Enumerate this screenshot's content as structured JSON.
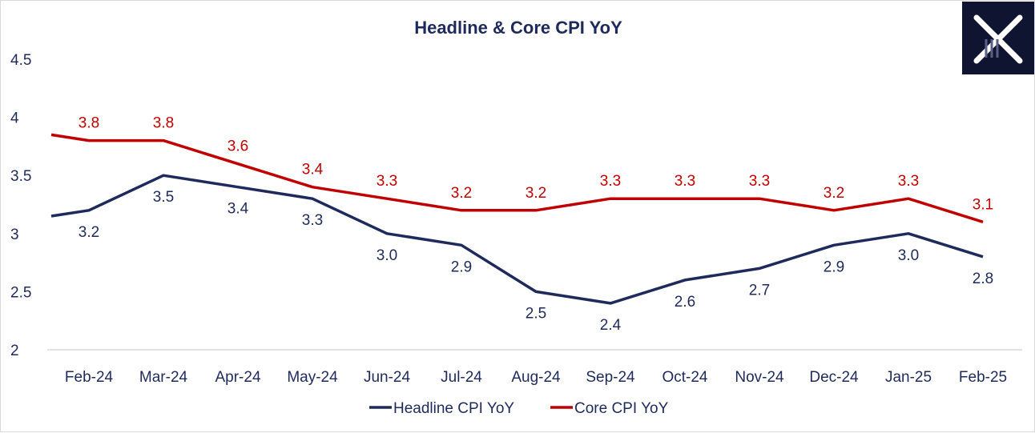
{
  "chart_data": {
    "type": "line",
    "title": "Headline & Core CPI YoY",
    "categories": [
      "Feb-24",
      "Mar-24",
      "Apr-24",
      "May-24",
      "Jun-24",
      "Jul-24",
      "Aug-24",
      "Sep-24",
      "Oct-24",
      "Nov-24",
      "Dec-24",
      "Jan-25",
      "Feb-25"
    ],
    "ylim": [
      2,
      4.5
    ],
    "yticks": [
      "2",
      "2.5",
      "3",
      "3.5",
      "4",
      "4.5"
    ],
    "grid": false,
    "legend": "bottom",
    "series": [
      {
        "name": "Headline CPI YoY",
        "color": "#1f2a5c",
        "start_value": 3.15,
        "values": [
          3.2,
          3.5,
          3.4,
          3.3,
          3.0,
          2.9,
          2.5,
          2.4,
          2.6,
          2.7,
          2.9,
          3.0,
          2.8
        ],
        "labels": [
          "3.2",
          "3.5",
          "3.4",
          "3.3",
          "3.0",
          "2.9",
          "2.5",
          "2.4",
          "2.6",
          "2.7",
          "2.9",
          "3.0",
          "2.8"
        ]
      },
      {
        "name": "Core CPI YoY",
        "color": "#c00000",
        "start_value": 3.85,
        "values": [
          3.8,
          3.8,
          3.6,
          3.4,
          3.3,
          3.2,
          3.2,
          3.3,
          3.3,
          3.3,
          3.2,
          3.3,
          3.1
        ],
        "labels": [
          "3.8",
          "3.8",
          "3.6",
          "3.4",
          "3.3",
          "3.2",
          "3.2",
          "3.3",
          "3.3",
          "3.3",
          "3.2",
          "3.3",
          "3.1"
        ]
      }
    ],
    "title_color": "#1f2a5c"
  },
  "logo": {
    "icon": "x-logo-icon",
    "background": "#0f1431",
    "color": "#ffffff"
  }
}
